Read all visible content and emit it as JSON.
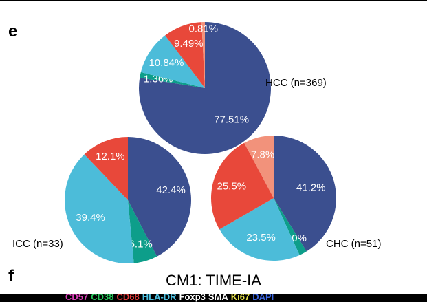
{
  "panel_e_letter": "e",
  "panel_f_letter": "f",
  "section_title": "CM1: TIME-IA",
  "colors": {
    "navy": "#3b4f8f",
    "teal": "#0d9e8a",
    "light_blue": "#4cbcd9",
    "red": "#e8483a",
    "salmon": "#f2927b"
  },
  "strip_markers": [
    {
      "text": "CD57",
      "color": "#d93fb8"
    },
    {
      "text": "CD38",
      "color": "#27c65b"
    },
    {
      "text": "CD68",
      "color": "#e33a3a"
    },
    {
      "text": "HLA-DR",
      "color": "#4ec0e0"
    },
    {
      "text": "Foxp3",
      "color": "#ffffff"
    },
    {
      "text": "SMA",
      "color": "#ffffff"
    },
    {
      "text": "Ki67",
      "color": "#e6e14a"
    },
    {
      "text": "DAPI",
      "color": "#3d67e0"
    }
  ],
  "chart_data": [
    {
      "type": "pie",
      "title": "HCC (n=369)",
      "labels": [
        "77.51%",
        "1.36%",
        "10.84%",
        "9.49%",
        "0.81%"
      ],
      "values": [
        77.51,
        1.36,
        10.84,
        9.49,
        0.81
      ],
      "colors": [
        "#3b4f8f",
        "#0d9e8a",
        "#4cbcd9",
        "#e8483a",
        "#f2927b"
      ]
    },
    {
      "type": "pie",
      "title": "ICC  (n=33)",
      "labels": [
        "42.4%",
        "6.1%",
        "39.4%",
        "12.1%"
      ],
      "values": [
        42.4,
        6.1,
        39.4,
        12.1
      ],
      "colors": [
        "#3b4f8f",
        "#0d9e8a",
        "#4cbcd9",
        "#e8483a"
      ]
    },
    {
      "type": "pie",
      "title": "CHC  (n=51)",
      "labels": [
        "41.2%",
        "2.0%",
        "23.5%",
        "25.5%",
        "7.8%"
      ],
      "values": [
        41.2,
        2.0,
        23.5,
        25.5,
        7.8
      ],
      "colors": [
        "#3b4f8f",
        "#0d9e8a",
        "#4cbcd9",
        "#e8483a",
        "#f2927b"
      ]
    }
  ]
}
